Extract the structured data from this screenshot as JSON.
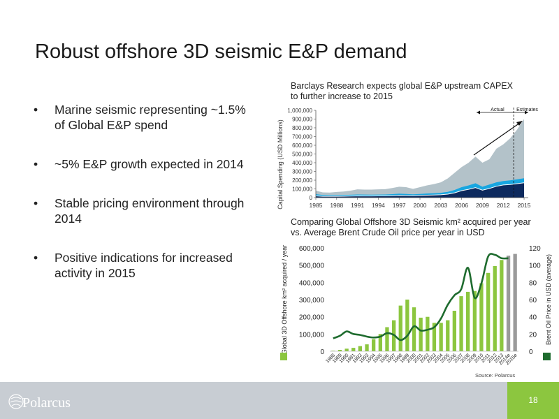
{
  "title": "Robust offshore 3D seismic E&P demand",
  "bullets": [
    "Marine seismic representing ~1.5% of Global E&P spend",
    "~5% E&P growth expected in 2014",
    "Stable pricing environment through 2014",
    "Positive indications for increased activity in 2015"
  ],
  "bullet_glyph": "•",
  "page_number": "18",
  "logo_text": "Polarcus",
  "colors": {
    "accent_green": "#8cc63f",
    "dark_green": "#1e6b2e",
    "navy": "#0d2a5e",
    "cyan": "#18a6e0",
    "grey": "#b3c2c9",
    "footer": "#c8cdd3"
  },
  "chart_data": [
    {
      "type": "area",
      "caption": "Barclays Research expects global E&P upstream CAPEX to further increase to 2015",
      "ylabel": "Capital Spending (USD Millions)",
      "ylim": [
        0,
        1000000
      ],
      "yticks": [
        "0",
        "100,000",
        "200,000",
        "300,000",
        "400,000",
        "500,000",
        "600,000",
        "700,000",
        "800,000",
        "900,000",
        "1,000,000"
      ],
      "xtick_labels": [
        "1985",
        "1988",
        "1991",
        "1994",
        "1997",
        "2000",
        "2003",
        "2006",
        "2009",
        "2012",
        "2015"
      ],
      "x": [
        1985,
        1986,
        1987,
        1988,
        1989,
        1990,
        1991,
        1992,
        1993,
        1994,
        1995,
        1996,
        1997,
        1998,
        1999,
        2000,
        2001,
        2002,
        2003,
        2004,
        2005,
        2006,
        2007,
        2008,
        2009,
        2010,
        2011,
        2012,
        2013,
        2014,
        2015
      ],
      "series": [
        {
          "values": [
            20000,
            15000,
            15000,
            15000,
            16000,
            18000,
            20000,
            19000,
            19000,
            20000,
            20000,
            22000,
            25000,
            24000,
            22000,
            25000,
            28000,
            30000,
            33000,
            40000,
            55000,
            80000,
            95000,
            115000,
            85000,
            105000,
            130000,
            145000,
            150000,
            160000,
            170000
          ]
        },
        {
          "values": [
            40000,
            30000,
            28000,
            28000,
            30000,
            33000,
            36000,
            35000,
            34000,
            35000,
            36000,
            40000,
            45000,
            42000,
            38000,
            42000,
            47000,
            50000,
            55000,
            66000,
            88000,
            120000,
            140000,
            165000,
            125000,
            150000,
            175000,
            190000,
            198000,
            210000,
            222000
          ]
        },
        {
          "values": [
            80000,
            60000,
            58000,
            65000,
            70000,
            80000,
            95000,
            92000,
            92000,
            95000,
            97000,
            110000,
            125000,
            120000,
            100000,
            120000,
            140000,
            155000,
            175000,
            220000,
            285000,
            350000,
            400000,
            470000,
            400000,
            440000,
            560000,
            610000,
            680000,
            780000,
            900000
          ]
        }
      ],
      "annotations": {
        "actual_label": "Actual",
        "estimates_label": "Estimates",
        "divider_x": 2013.5
      }
    },
    {
      "type": "bar+line",
      "caption": "Comparing Global Offshore 3D Seismic km² acquired per year vs. Average Brent Crude Oil price per year in USD",
      "ylabel_left": "Global 3D Offshore km² acquired / year",
      "ylabel_right": "Brent Oil Price in USD (average)",
      "ylim_left": [
        0,
        600000
      ],
      "ylim_right": [
        0,
        120
      ],
      "yticks_left": [
        "0",
        "100,000",
        "200,000",
        "300,000",
        "400,000",
        "500,000",
        "600,000"
      ],
      "yticks_right": [
        "0",
        "20",
        "40",
        "60",
        "80",
        "100",
        "120"
      ],
      "categories": [
        "1988",
        "1989",
        "1990",
        "1991",
        "1992",
        "1993",
        "1994",
        "1995",
        "1996",
        "1997",
        "1998",
        "1999",
        "2000",
        "2001",
        "2002",
        "2003",
        "2004",
        "2005",
        "2006",
        "2007",
        "2008",
        "2009",
        "2010",
        "2011",
        "2012",
        "2013",
        "2014e",
        "2015e"
      ],
      "bar_values": [
        3000,
        8000,
        15000,
        20000,
        30000,
        40000,
        70000,
        100000,
        140000,
        180000,
        265000,
        300000,
        255000,
        195000,
        200000,
        165000,
        165000,
        180000,
        235000,
        320000,
        345000,
        350000,
        395000,
        455000,
        495000,
        530000,
        555000,
        565000
      ],
      "estimate_from_index": 26,
      "line_values": [
        15,
        18,
        23,
        20,
        19,
        17,
        16,
        17,
        21,
        19,
        13,
        18,
        29,
        24,
        25,
        28,
        38,
        54,
        65,
        72,
        97,
        62,
        79,
        110,
        112,
        108,
        108
      ]
    }
  ],
  "source": "Source: Polarcus"
}
